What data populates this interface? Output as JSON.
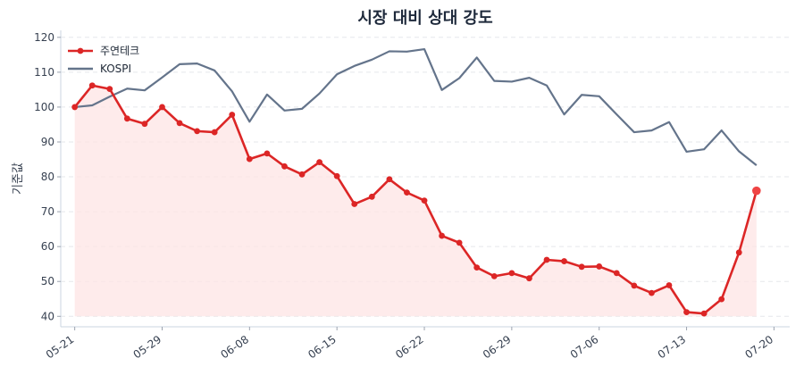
{
  "chart_data": {
    "type": "line",
    "title": "시장 대비 상대 강도",
    "xlabel": "",
    "ylabel": "기준값",
    "ylim": [
      37,
      122
    ],
    "yticks": [
      40,
      50,
      60,
      70,
      80,
      90,
      100,
      110,
      120
    ],
    "grid": "horizontal dashed",
    "legend_position": "top-left",
    "x_tick_labels": [
      "05-21",
      "05-29",
      "06-08",
      "06-15",
      "06-22",
      "06-29",
      "07-06",
      "07-13",
      "07-20"
    ],
    "x_tick_positions": [
      0,
      5,
      10,
      15,
      20,
      25,
      30,
      35,
      40
    ],
    "x_range": [
      -0.8,
      40.9
    ],
    "series": [
      {
        "name": "주연테크",
        "color": "#dc2626",
        "area_fill": "#fde4e4",
        "markers": true,
        "values": [
          100,
          106.2,
          105.2,
          96.7,
          95.2,
          100,
          95.4,
          93.1,
          92.8,
          97.8,
          85.1,
          86.7,
          83.0,
          80.7,
          84.2,
          80.2,
          72.2,
          74.3,
          79.3,
          75.5,
          73.2,
          63.1,
          61.1,
          54.0,
          51.5,
          52.4,
          50.9,
          56.2,
          55.8,
          54.2,
          54.3,
          52.4,
          48.8,
          46.7,
          48.9,
          41.2,
          40.8,
          44.9,
          58.3,
          76.0
        ]
      },
      {
        "name": "KOSPI",
        "color": "#64748b",
        "markers": false,
        "values": [
          100,
          100.5,
          103.0,
          105.3,
          104.8,
          108.5,
          112.3,
          112.5,
          110.5,
          104.5,
          95.8,
          103.6,
          99.0,
          99.5,
          103.9,
          109.4,
          111.8,
          113.6,
          116.0,
          115.9,
          116.6,
          104.9,
          108.3,
          114.2,
          107.5,
          107.3,
          108.4,
          106.2,
          97.9,
          103.5,
          103.1,
          97.9,
          92.8,
          93.3,
          95.7,
          87.2,
          87.9,
          93.3,
          87.3,
          83.3
        ]
      }
    ]
  }
}
